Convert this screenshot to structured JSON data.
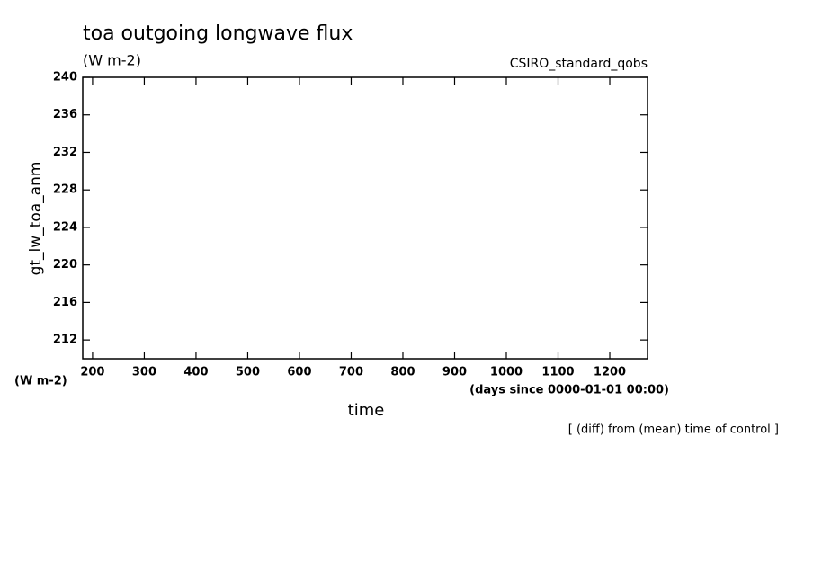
{
  "chart_data": {
    "type": "line",
    "title": "toa outgoing longwave flux",
    "subtitle": "(W m-2)",
    "source": "CSIRO_standard_qobs",
    "ylabel": "gt_lw_toa_anm",
    "yunits": "(W m-2)",
    "xlabel": "time",
    "xunits": "(days since 0000-01-01 00:00)",
    "note": "[ (diff) from (mean) time of control ]",
    "xlim": [
      181,
      1273
    ],
    "xticks": [
      200,
      300,
      400,
      500,
      600,
      700,
      800,
      900,
      1000,
      1100,
      1200
    ],
    "ylim": [
      210,
      240
    ],
    "yticks": [
      212,
      216,
      220,
      224,
      228,
      232,
      236,
      240
    ],
    "series": []
  }
}
